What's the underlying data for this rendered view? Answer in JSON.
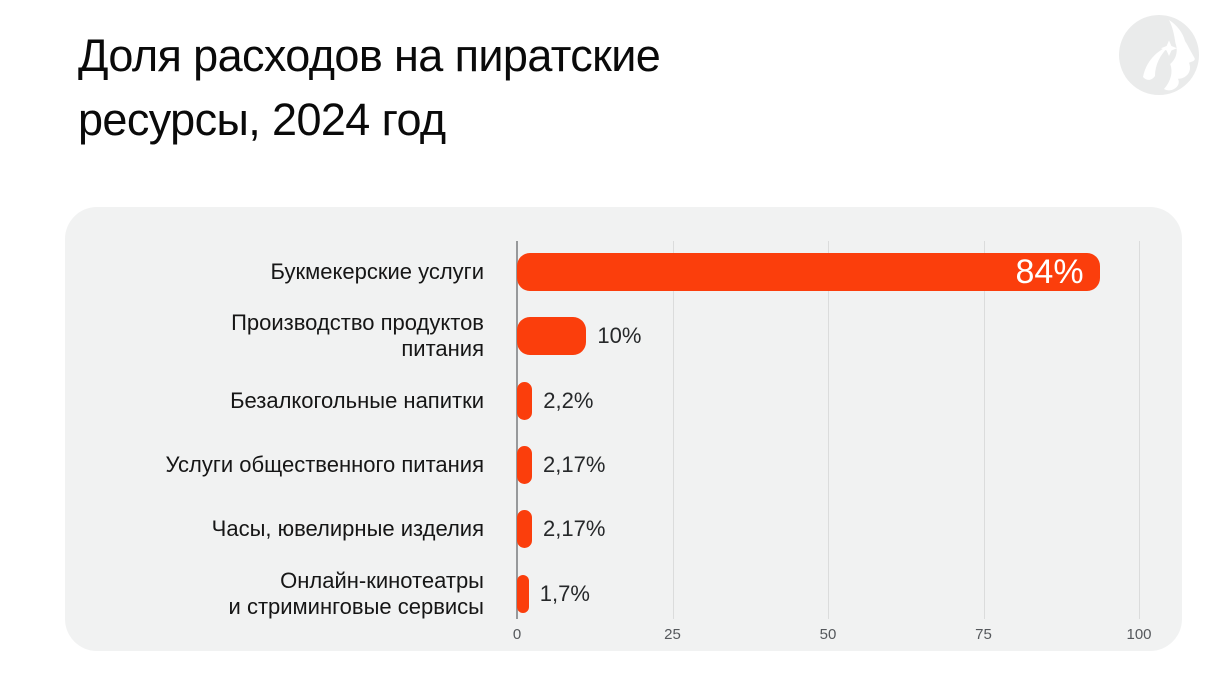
{
  "title": {
    "text": "Доля расходов на пиратские ресурсы, 2024 год",
    "lines": [
      "Доля расходов на пиратские",
      "ресурсы, 2024 год"
    ]
  },
  "logo": {
    "description": "head-profile-with-star emblem in light gray circle"
  },
  "colors": {
    "page_bg": "#FFFFFF",
    "card_bg": "#F1F2F2",
    "bar": "#FB3E0C",
    "grid_line": "#DBDCDC",
    "axis_line": "#97999B",
    "tick_text": "#55585C",
    "category_text": "#161616",
    "value_text": "#26282A",
    "value_inside_text": "#FFFFFF",
    "logo_circle": "#EAEBEB"
  },
  "chart_data": {
    "type": "bar",
    "orientation": "horizontal",
    "title": "Доля расходов на пиратские ресурсы, 2024 год",
    "categories": [
      "Букмекерские услуги",
      "Производство продуктов питания",
      "Безалкогольные напитки",
      "Услуги общественного питания",
      "Часы, ювелирные изделия",
      "Онлайн-кинотеатры и стриминговые сервисы"
    ],
    "category_lines": [
      [
        "Букмекерские услуги"
      ],
      [
        "Производство продуктов",
        "питания"
      ],
      [
        "Безалкогольные напитки"
      ],
      [
        "Услуги общественного питания"
      ],
      [
        "Часы, ювелирные изделия"
      ],
      [
        "Онлайн-кинотеатры",
        "и стриминговые сервисы"
      ]
    ],
    "values": [
      84,
      10,
      2.2,
      2.17,
      2.17,
      1.7
    ],
    "value_labels": [
      "84%",
      "10%",
      "2,2%",
      "2,17%",
      "2,17%",
      "1,7%"
    ],
    "value_label_position": [
      "inside-end",
      "outside",
      "outside",
      "outside",
      "outside",
      "outside"
    ],
    "x_ticks": [
      "0",
      "25",
      "50",
      "75",
      "100"
    ],
    "x_tick_values": [
      0,
      25,
      50,
      75,
      100
    ],
    "xlim": [
      0,
      100
    ],
    "xlabel": "",
    "ylabel": "",
    "grid": "vertical-lines",
    "legend": "none",
    "bar_visual_scale": 1.115
  }
}
